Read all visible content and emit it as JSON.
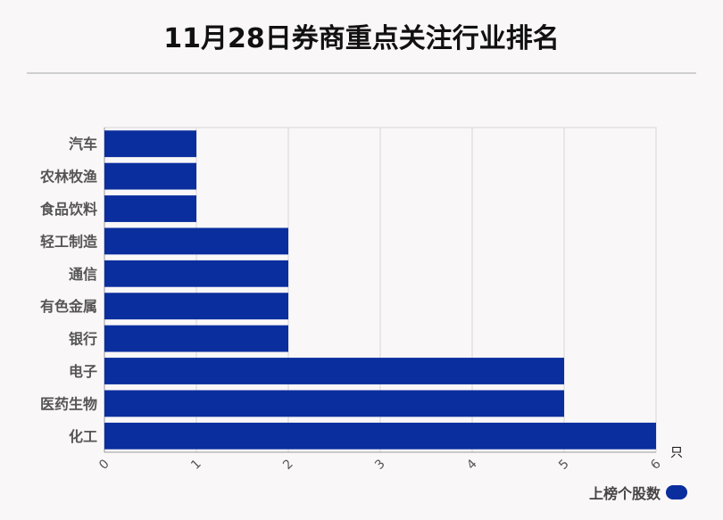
{
  "title": "11月28日券商重点关注行业排名",
  "chart_data": {
    "type": "bar",
    "orientation": "horizontal",
    "categories": [
      "汽车",
      "农林牧渔",
      "食品饮料",
      "轻工制造",
      "通信",
      "有色金属",
      "银行",
      "电子",
      "医药生物",
      "化工"
    ],
    "series": [
      {
        "name": "上榜个股数",
        "values": [
          1,
          1,
          1,
          2,
          2,
          2,
          2,
          5,
          5,
          6
        ]
      }
    ],
    "xlim": [
      0,
      6
    ],
    "xticks": [
      0,
      1,
      2,
      3,
      4,
      5,
      6
    ],
    "xunit": "只",
    "grid": true,
    "legend_position": "bottom-right"
  },
  "colors": {
    "bar": "#0b2e9e",
    "grid": "#d6d6d6",
    "axis": "#999999"
  }
}
